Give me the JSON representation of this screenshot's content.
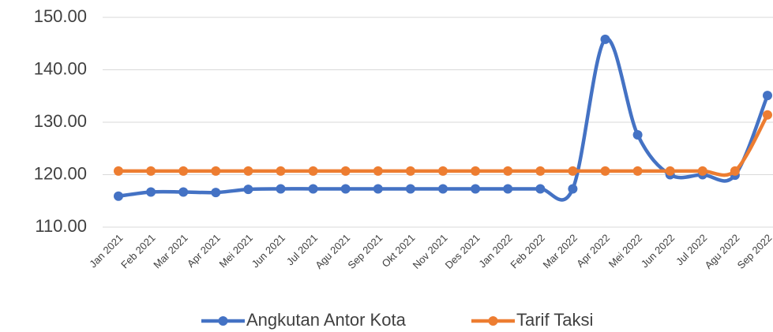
{
  "chart_data": {
    "type": "line",
    "categories": [
      "Jan 2021",
      "Feb 2021",
      "Mar 2021",
      "Apr 2021",
      "Mei 2021",
      "Jun 2021",
      "Jul 2021",
      "Agu 2021",
      "Sep 2021",
      "Okt 2021",
      "Nov 2021",
      "Des 2021",
      "Jan 2022",
      "Feb 2022",
      "Mar 2022",
      "Apr 2022",
      "Mei 2022",
      "Jun 2022",
      "Jul 2022",
      "Agu 2022",
      "Sep 2022"
    ],
    "series": [
      {
        "name": "Angkutan Antor Kota",
        "color": "#4472c4",
        "values": [
          115.9,
          116.7,
          116.7,
          116.6,
          117.2,
          117.3,
          117.3,
          117.3,
          117.3,
          117.3,
          117.3,
          117.3,
          117.3,
          117.3,
          117.3,
          145.8,
          127.6,
          120.0,
          120.0,
          119.9,
          135.1
        ]
      },
      {
        "name": "Tarif Taksi",
        "color": "#ed7d31",
        "values": [
          120.7,
          120.7,
          120.7,
          120.7,
          120.7,
          120.7,
          120.7,
          120.7,
          120.7,
          120.7,
          120.7,
          120.7,
          120.7,
          120.7,
          120.7,
          120.7,
          120.7,
          120.7,
          120.7,
          120.7,
          131.4
        ]
      }
    ],
    "ylim": [
      110,
      150
    ],
    "yticks": [
      {
        "value": 110,
        "label": "110.00"
      },
      {
        "value": 120,
        "label": "120.00"
      },
      {
        "value": 130,
        "label": "130.00"
      },
      {
        "value": 140,
        "label": "140.00"
      },
      {
        "value": 150,
        "label": "150.00"
      }
    ],
    "grid": true,
    "legend": "bottom"
  }
}
